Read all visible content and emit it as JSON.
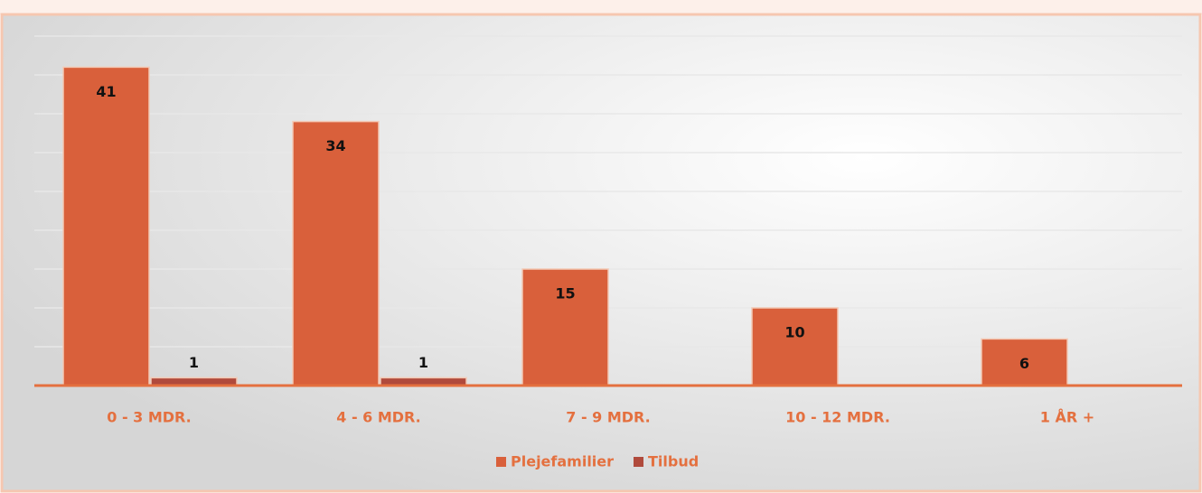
{
  "chart_data": {
    "type": "bar",
    "categories": [
      "0 - 3 MDR.",
      "4 - 6 MDR.",
      "7 - 9 MDR.",
      "10 - 12 MDR.",
      "1 ÅR +"
    ],
    "series": [
      {
        "name": "Plejefamilier",
        "color": "#d9603b",
        "values": [
          41,
          34,
          15,
          10,
          6
        ]
      },
      {
        "name": "Tilbud",
        "color": "#b04a3c",
        "values": [
          1,
          1,
          null,
          null,
          null
        ]
      }
    ],
    "ylim": [
      0,
      45
    ],
    "yticks": [
      0,
      5,
      10,
      15,
      20,
      25,
      30,
      35,
      40,
      45
    ],
    "grid": true,
    "legend": "bottom"
  }
}
